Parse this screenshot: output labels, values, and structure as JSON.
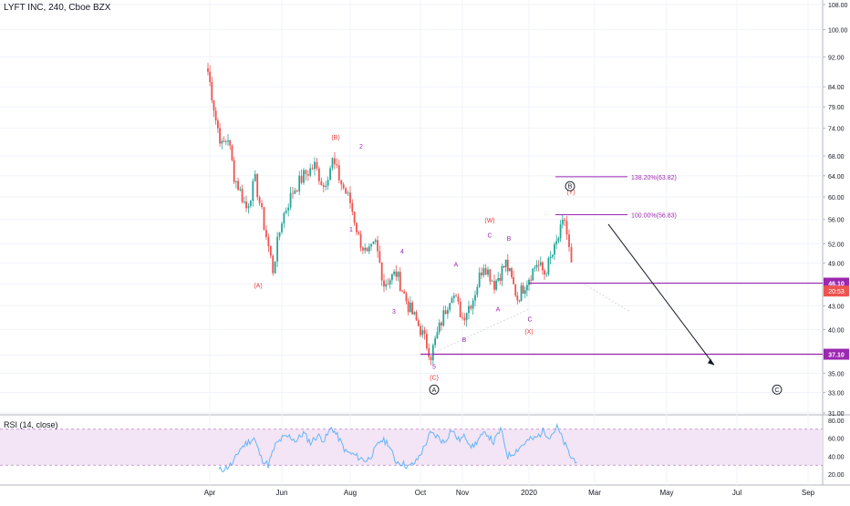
{
  "chart_data": [
    {
      "type": "candlestick",
      "title": "LYFT INC, 240, Cboe BZX",
      "x_ticks": [
        "Apr",
        "Jun",
        "Aug",
        "Oct",
        "Nov",
        "2020",
        "Mar",
        "May",
        "Jul",
        "Sep"
      ],
      "y_ticks": [
        31.0,
        33.0,
        35.0,
        37.0,
        40.0,
        43.0,
        46.0,
        49.0,
        52.0,
        56.0,
        60.0,
        64.0,
        68.0,
        74.0,
        79.0,
        84.0,
        92.0,
        100.0,
        108.0
      ],
      "y_scale": "log",
      "y_range": [
        31.0,
        108.0
      ],
      "close_path": [
        [
          "Apr",
          88.0
        ],
        [
          "Apr",
          76.0
        ],
        [
          "Apr",
          70.0
        ],
        [
          "Apr",
          72.0
        ],
        [
          "Apr",
          64.0
        ],
        [
          "Apr",
          61.0
        ],
        [
          "May",
          58.0
        ],
        [
          "May",
          63.0
        ],
        [
          "May",
          55.0
        ],
        [
          "May",
          48.0
        ],
        [
          "Jun",
          56.0
        ],
        [
          "Jun",
          61.0
        ],
        [
          "Jun",
          64.0
        ],
        [
          "Jul",
          66.0
        ],
        [
          "Jul",
          62.0
        ],
        [
          "Jul",
          67.0
        ],
        [
          "Jul",
          62.5
        ],
        [
          "Aug",
          59.0
        ],
        [
          "Aug",
          53.0
        ],
        [
          "Aug",
          50.0
        ],
        [
          "Aug",
          52.0
        ],
        [
          "Sep",
          46.0
        ],
        [
          "Sep",
          47.5
        ],
        [
          "Sep",
          43.0
        ],
        [
          "Oct",
          40.0
        ],
        [
          "Oct",
          37.0
        ],
        [
          "Oct",
          41.0
        ],
        [
          "Oct",
          45.0
        ],
        [
          "Nov",
          41.5
        ],
        [
          "Nov",
          44.0
        ],
        [
          "Nov",
          49.0
        ],
        [
          "Dec",
          46.0
        ],
        [
          "Dec",
          49.0
        ],
        [
          "Dec",
          44.0
        ],
        [
          "2020",
          47.0
        ],
        [
          "2020",
          49.0
        ],
        [
          "Jan",
          47.5
        ],
        [
          "Jan",
          51.0
        ],
        [
          "Feb",
          56.0
        ],
        [
          "Feb",
          51.0
        ],
        [
          "Feb",
          46.0
        ]
      ],
      "price_levels": [
        {
          "label": "46.10",
          "value": 46.1,
          "color": "#9c27b0"
        },
        {
          "label": "37.10",
          "value": 37.1,
          "color": "#9c27b0"
        }
      ],
      "current_price_label": "20:53",
      "fib_levels": [
        {
          "label": "138.20%(63.82)",
          "value": 63.82
        },
        {
          "label": "100.00%(56.83)",
          "value": 56.83
        }
      ],
      "wave_labels": [
        {
          "text": "(A)",
          "color": "#e53935",
          "x": "May",
          "y": 45.5
        },
        {
          "text": "(B)",
          "color": "#e53935",
          "x": "Jul",
          "y": 71.5
        },
        {
          "text": "2",
          "color": "#9c27b0",
          "x": "Jul",
          "y": 69.5
        },
        {
          "text": "1",
          "color": "#9c27b0",
          "x": "Aug",
          "y": 54.0
        },
        {
          "text": "4",
          "color": "#9c27b0",
          "x": "Sep",
          "y": 50.5
        },
        {
          "text": "3",
          "color": "#9c27b0",
          "x": "Sep",
          "y": 42.0
        },
        {
          "text": "5",
          "color": "#9c27b0",
          "x": "Oct",
          "y": 35.5
        },
        {
          "text": "(C)",
          "color": "#e53935",
          "x": "Oct",
          "y": 34.3
        },
        {
          "text": "(W)",
          "color": "#e53935",
          "x": "Nov",
          "y": 55.5
        },
        {
          "text": "C",
          "color": "#9c27b0",
          "x": "Nov",
          "y": 53.0
        },
        {
          "text": "B",
          "color": "#9c27b0",
          "x": "Dec",
          "y": 52.5
        },
        {
          "text": "A",
          "color": "#9c27b0",
          "x": "Nov",
          "y": 48.5
        },
        {
          "text": "B",
          "color": "#9c27b0",
          "x": "Nov",
          "y": 38.5
        },
        {
          "text": "A",
          "color": "#9c27b0",
          "x": "Dec",
          "y": 42.3
        },
        {
          "text": "C",
          "color": "#9c27b0",
          "x": "2020",
          "y": 41.0
        },
        {
          "text": "(X)",
          "color": "#e53935",
          "x": "2020",
          "y": 39.5
        },
        {
          "text": "(Y)",
          "color": "#e53935",
          "x": "Feb",
          "y": 60.5
        }
      ],
      "circled_labels": [
        {
          "text": "A",
          "x": "Oct",
          "y": 33.3
        },
        {
          "text": "B",
          "x": "Feb",
          "y": 62.0
        },
        {
          "text": "C",
          "x": "Aug",
          "y": 33.3
        }
      ],
      "grid": true,
      "colors": {
        "up": "#26a69a",
        "down": "#ef5350",
        "level": "#9c27b0",
        "fib": "#ce93d8",
        "wave_red": "#e53935",
        "wave_purple": "#9c27b0"
      }
    },
    {
      "type": "line",
      "title": "RSI (14, close)",
      "y_ticks": [
        20.0,
        40.0,
        60.0,
        80.0
      ],
      "y_range": [
        15,
        85
      ],
      "bands": [
        30,
        70
      ],
      "series": [
        {
          "values": [
            24,
            27,
            32,
            48,
            55,
            60,
            38,
            30,
            52,
            60,
            62,
            57,
            66,
            55,
            63,
            58,
            72,
            60,
            45,
            42,
            38,
            35,
            45,
            58,
            55,
            35,
            32,
            28,
            34,
            48,
            65,
            62,
            55,
            70,
            58,
            62,
            50,
            60,
            66,
            55,
            70,
            40,
            45,
            52,
            58,
            60,
            68,
            62,
            72,
            55,
            38,
            35
          ]
        }
      ],
      "colors": {
        "line": "#64b5f6",
        "band": "#f3e5f5",
        "band_edge": "#9c27b0"
      }
    }
  ]
}
